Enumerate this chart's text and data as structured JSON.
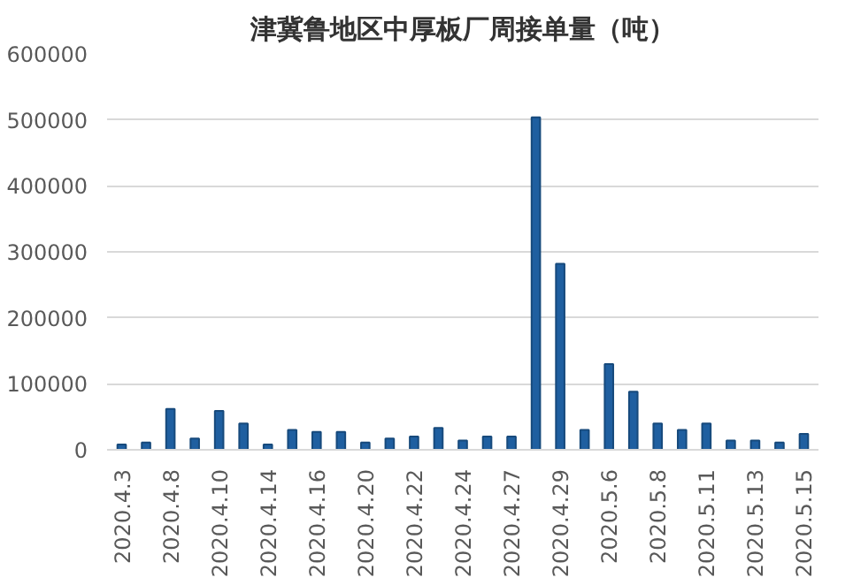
{
  "chart_data": {
    "type": "bar",
    "title": "津冀鲁地区中厚板厂周接单量（吨）",
    "categories": [
      "2020.4.3",
      null,
      "2020.4.8",
      null,
      "2020.4.10",
      null,
      "2020.4.14",
      null,
      "2020.4.16",
      null,
      "2020.4.20",
      null,
      "2020.4.22",
      null,
      "2020.4.24",
      null,
      "2020.4.27",
      null,
      "2020.4.29",
      null,
      "2020.5.6",
      null,
      "2020.5.8",
      null,
      "2020.5.11",
      null,
      "2020.5.13",
      null,
      "2020.5.15"
    ],
    "values": [
      8000,
      11000,
      62000,
      17000,
      59000,
      40000,
      8000,
      30000,
      27000,
      27000,
      11000,
      17000,
      20000,
      33000,
      14000,
      20000,
      20000,
      504000,
      282000,
      30000,
      130000,
      88000,
      40000,
      30000,
      40000,
      14000,
      14000,
      11000,
      24000
    ],
    "color": "#1f5fa0",
    "ylim": [
      0,
      600000
    ],
    "yticks": [
      0,
      100000,
      200000,
      300000,
      400000,
      500000,
      600000
    ],
    "grid": "y"
  }
}
